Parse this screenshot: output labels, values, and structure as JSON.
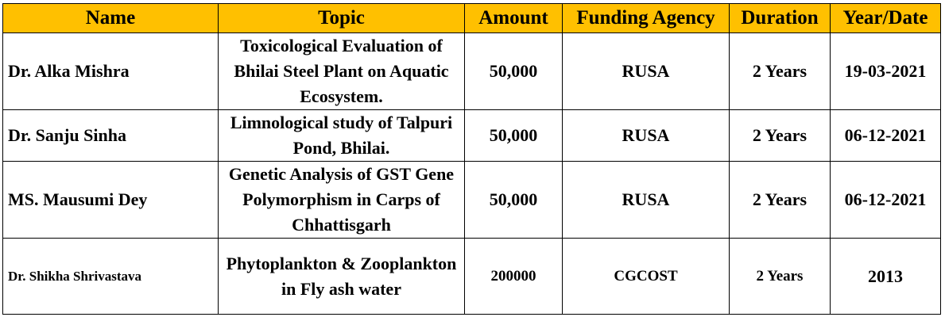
{
  "headers": {
    "name": "Name",
    "topic": "Topic",
    "amount": "Amount",
    "agency": "Funding Agency",
    "duration": "Duration",
    "year": "Year/Date"
  },
  "rows": [
    {
      "name": "Dr. Alka Mishra",
      "topic": "Toxicological Evaluation of Bhilai Steel Plant on Aquatic Ecosystem.",
      "amount": "50,000",
      "agency": "RUSA",
      "duration": "2 Years",
      "year": "19-03-2021"
    },
    {
      "name": "Dr. Sanju Sinha",
      "topic": "Limnological study of Talpuri Pond, Bhilai.",
      "amount": "50,000",
      "agency": "RUSA",
      "duration": "2 Years",
      "year": "06-12-2021"
    },
    {
      "name": "MS. Mausumi Dey",
      "topic": "Genetic Analysis of GST Gene Polymorphism in Carps of Chhattisgarh",
      "amount": "50,000",
      "agency": "RUSA",
      "duration": "2 Years",
      "year": "06-12-2021"
    },
    {
      "name": "Dr. Shikha Shrivastava",
      "topic": "Phytoplankton & Zooplankton in Fly ash water",
      "amount": "200000",
      "agency": "CGCOST",
      "duration": "2 Years",
      "year": "2013"
    }
  ],
  "colors": {
    "header_bg": "#ffc000",
    "border": "#000000",
    "text": "#000000"
  }
}
